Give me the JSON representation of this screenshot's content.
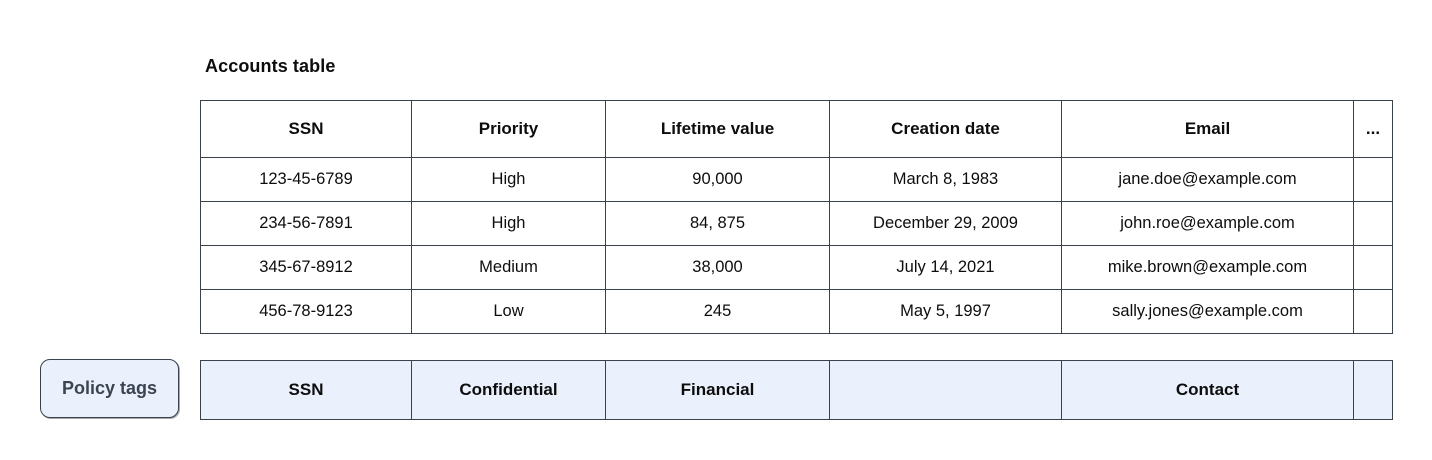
{
  "title": "Accounts table",
  "accounts_table": {
    "columns": [
      "SSN",
      "Priority",
      "Lifetime value",
      "Creation date",
      "Email",
      "..."
    ],
    "rows": [
      [
        "123-45-6789",
        "High",
        "90,000",
        "March 8, 1983",
        "jane.doe@example.com",
        ""
      ],
      [
        "234-56-7891",
        "High",
        "84, 875",
        "December 29, 2009",
        "john.roe@example.com",
        ""
      ],
      [
        "345-67-8912",
        "Medium",
        "38,000",
        "July 14, 2021",
        "mike.brown@example.com",
        ""
      ],
      [
        "456-78-9123",
        "Low",
        "245",
        "May 5, 1997",
        "sally.jones@example.com",
        ""
      ]
    ]
  },
  "policy_tags": {
    "label": "Policy tags",
    "tags": [
      "SSN",
      "Confidential",
      "Financial",
      "",
      "Contact",
      ""
    ]
  },
  "colors": {
    "table_border": "#3a424c",
    "policy_fill": "#eaf1fc",
    "policy_chip_text": "#3c4452",
    "text": "#0d0d0d"
  }
}
